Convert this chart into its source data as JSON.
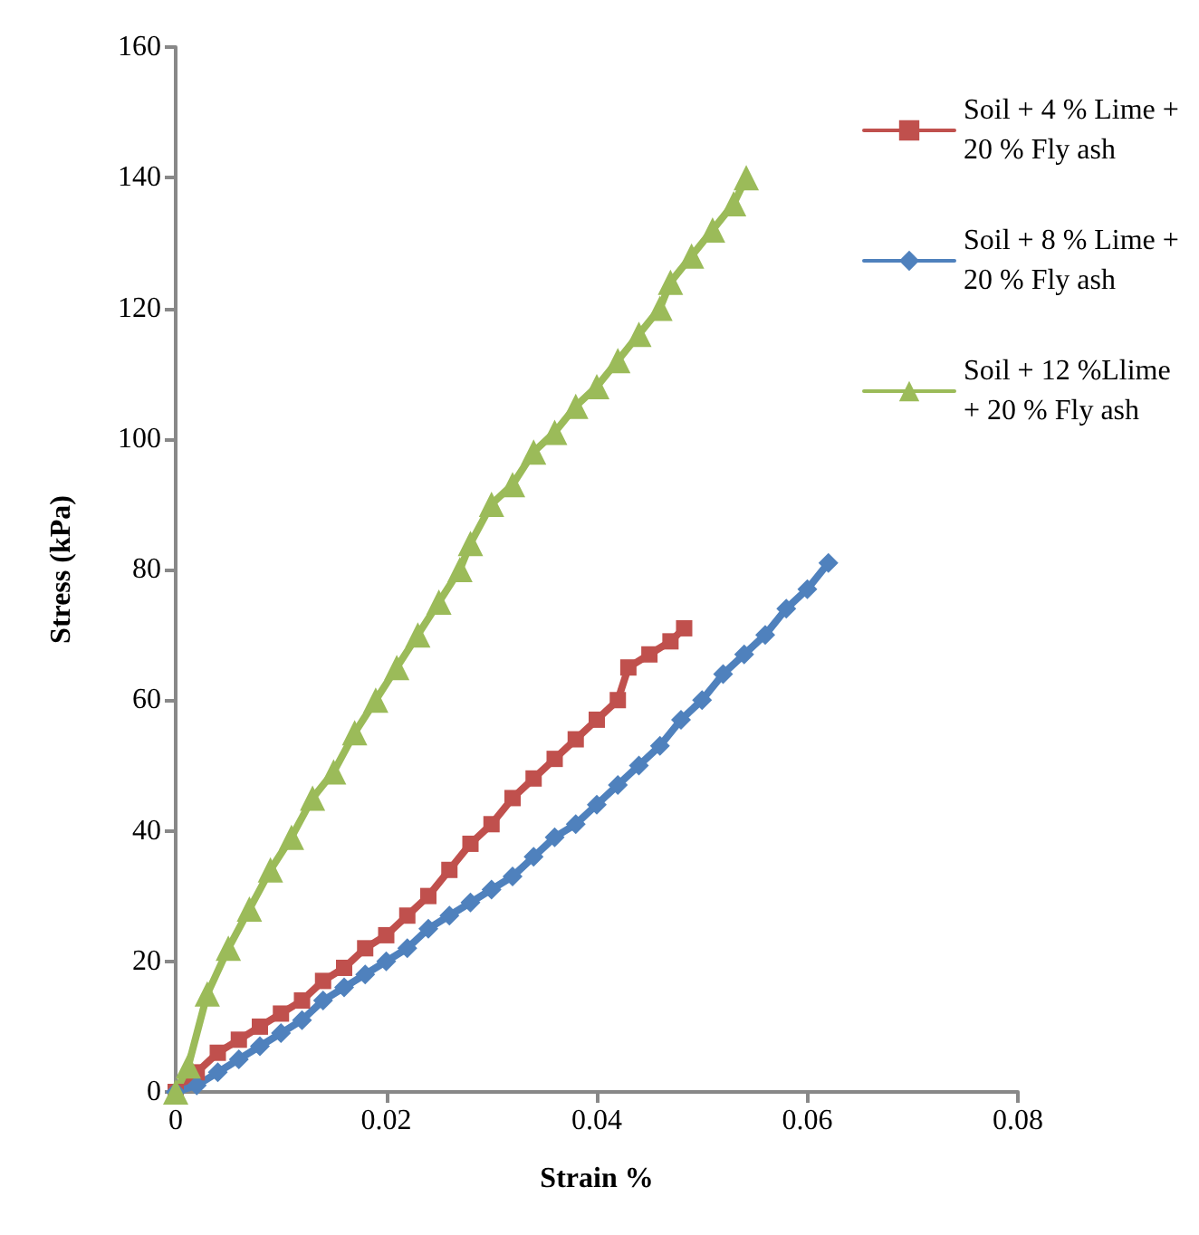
{
  "chart_data": {
    "type": "line",
    "xlabel": "Strain %",
    "ylabel": "Stress (kPa)",
    "xlim": [
      0,
      0.08
    ],
    "xticks": [
      0,
      0.02,
      0.04,
      0.06,
      0.08
    ],
    "ylim": [
      0,
      160
    ],
    "yticks": [
      0,
      20,
      40,
      60,
      80,
      100,
      120,
      140,
      160
    ],
    "grid": false,
    "legend": "top right",
    "line_style": "solid",
    "series": [
      {
        "name": "Soil + 4 % Lime + 20 % Fly ash",
        "color": "#c0504d",
        "marker": "square",
        "x": [
          0,
          0.002,
          0.004,
          0.006,
          0.008,
          0.01,
          0.012,
          0.014,
          0.016,
          0.018,
          0.02,
          0.022,
          0.024,
          0.026,
          0.028,
          0.03,
          0.032,
          0.034,
          0.036,
          0.038,
          0.04,
          0.042,
          0.043,
          0.045,
          0.047,
          0.0483
        ],
        "values": [
          0,
          3,
          6,
          8,
          10,
          12,
          14,
          17,
          19,
          22,
          24,
          27,
          30,
          34,
          38,
          41,
          45,
          48,
          51,
          54,
          57,
          60,
          65,
          67,
          69,
          71
        ]
      },
      {
        "name": "Soil + 8 % Lime + 20 % Fly ash",
        "color": "#4f81bd",
        "marker": "diamond",
        "x": [
          0,
          0.002,
          0.004,
          0.006,
          0.008,
          0.01,
          0.012,
          0.014,
          0.016,
          0.018,
          0.02,
          0.022,
          0.024,
          0.026,
          0.028,
          0.03,
          0.032,
          0.034,
          0.036,
          0.038,
          0.04,
          0.042,
          0.044,
          0.046,
          0.048,
          0.05,
          0.052,
          0.054,
          0.056,
          0.058,
          0.06,
          0.062
        ],
        "values": [
          0,
          1,
          3,
          5,
          7,
          9,
          11,
          14,
          16,
          18,
          20,
          22,
          25,
          27,
          29,
          31,
          33,
          36,
          39,
          41,
          44,
          47,
          50,
          53,
          57,
          60,
          64,
          67,
          70,
          74,
          77,
          81
        ]
      },
      {
        "name": "Soil + 12 %Llime + 20 % Fly ash",
        "color": "#9bbb59",
        "marker": "triangle",
        "x": [
          0,
          0.0012,
          0.003,
          0.005,
          0.007,
          0.009,
          0.011,
          0.013,
          0.015,
          0.017,
          0.019,
          0.021,
          0.023,
          0.025,
          0.027,
          0.028,
          0.03,
          0.032,
          0.034,
          0.036,
          0.038,
          0.04,
          0.042,
          0.044,
          0.046,
          0.047,
          0.049,
          0.051,
          0.053,
          0.0542
        ],
        "values": [
          0,
          4,
          15,
          22,
          28,
          34,
          39,
          45,
          49,
          55,
          60,
          65,
          70,
          75,
          80,
          84,
          90,
          93,
          98,
          101,
          105,
          108,
          112,
          116,
          120,
          124,
          128,
          132,
          136,
          140
        ]
      }
    ]
  }
}
